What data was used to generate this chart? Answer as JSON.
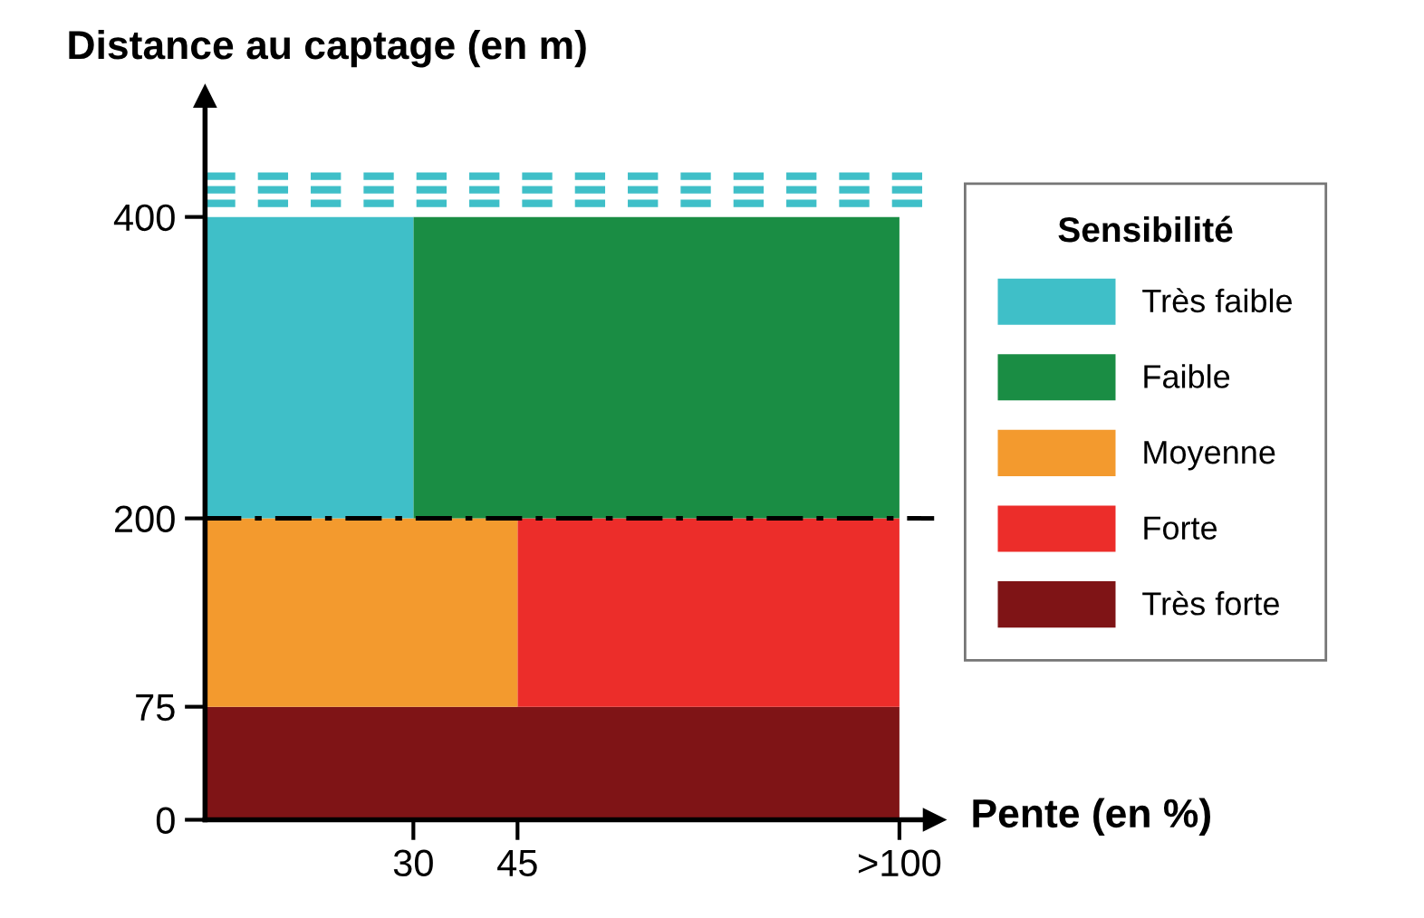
{
  "chart_data": {
    "type": "area",
    "stacked": true,
    "xlabel": "Pente (en %)",
    "ylabel": "Distance au captage (en m)",
    "legend_title": "Sensibilité",
    "x": [
      0,
      30,
      30,
      45,
      45,
      100
    ],
    "xlim": [
      0,
      105
    ],
    "xticks": [
      30,
      45,
      {
        "value": 100,
        "label": ">100"
      }
    ],
    "ylim": [
      0,
      480
    ],
    "yticks": [
      0,
      75,
      200,
      400
    ],
    "series": [
      {
        "name": "Très forte",
        "color": "#7f1416",
        "values": [
          75,
          75,
          75,
          75,
          75,
          75
        ]
      },
      {
        "name": "Forte",
        "color": "#ec2d2a",
        "values": [
          null,
          null,
          null,
          null,
          125,
          125
        ]
      },
      {
        "name": "Moyenne",
        "color": "#f39a2e",
        "values": [
          125,
          125,
          125,
          125,
          null,
          null
        ]
      },
      {
        "name": "Faible",
        "color": "#1a8d44",
        "values": [
          null,
          null,
          200,
          200,
          200,
          200
        ]
      },
      {
        "name": "Très faible",
        "color": "#3fbfc8",
        "values": [
          200,
          200,
          null,
          null,
          null,
          null
        ]
      }
    ],
    "ref_lines": [
      {
        "axis": "y",
        "value": 200,
        "color": "#000000",
        "line_style": "dashdot"
      },
      {
        "axis": "y",
        "value": 409,
        "color": "#3fbfc8",
        "line_style": "dashed"
      },
      {
        "axis": "y",
        "value": 418,
        "color": "#3fbfc8",
        "line_style": "dashed"
      },
      {
        "axis": "y",
        "value": 427,
        "color": "#3fbfc8",
        "line_style": "dashed"
      }
    ],
    "legend": "right",
    "grid": false
  }
}
